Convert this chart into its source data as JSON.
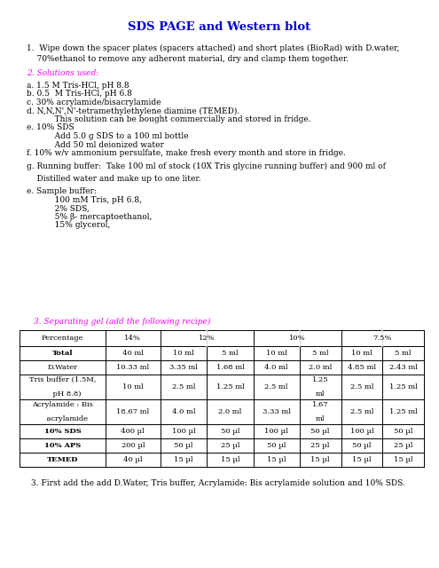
{
  "title": "SDS PAGE and Western blot",
  "title_color": "#0000CC",
  "title_fontsize": 9.5,
  "body_fontsize": 6.5,
  "small_fontsize": 6.0,
  "bg_color": "#ffffff",
  "text_color": "#000000",
  "heading_color": "#FF00FF",
  "section1": "1.  Wipe down the spacer plates (spacers attached) and short plates (BioRad) with D.water,",
  "section1b": "    70%ethanol to remove any adherent material, dry and clamp them together.",
  "section2_heading": "2. Solutions used:",
  "solutions": [
    "a. 1.5 M Tris-HCl, pH 8.8",
    "b. 0.5  M Tris-HCl, pH 6.8",
    "c. 30% acrylamide/bisacrylamide",
    "d. N,N,N',N'-tetramethylethylene diamine (TEMED).",
    "           This solution can be bought commercially and stored in fridge.",
    "e. 10% SDS",
    "           Add 5.0 g SDS to a 100 ml bottle",
    "           Add 50 ml deionized water",
    "f. 10% w/v ammonium persulfate, make fresh every month and store in fridge.",
    "",
    "g. Running buffer:  Take 100 ml of stock (10X Tris glycine running buffer) and 900 ml of",
    "",
    "    Distilled water and make up to one liter.",
    "",
    "e. Sample buffer:",
    "           100 mM Tris, pH 6.8,",
    "           2% SDS,",
    "           5% β- mercaptoethanol,",
    "           15% glycerol,"
  ],
  "section3_heading": "3. Separating gel (add the following recipe)",
  "footer": "3. First add the add D.Water, Tris buffer, Acrylamide: Bis acrylamide solution and 10% SDS."
}
